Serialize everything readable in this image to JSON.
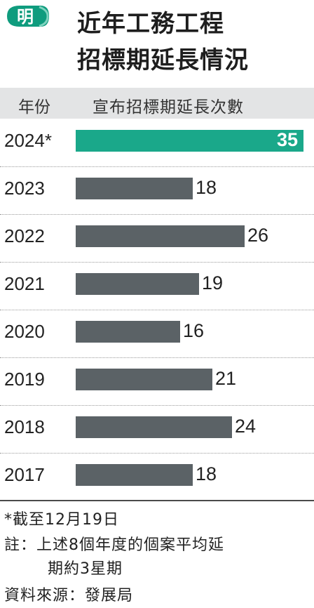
{
  "logo": {
    "text": "明",
    "bg_color": "#0f9c7e"
  },
  "title": {
    "line1": "近年工務工程",
    "line2": "招標期延長情況"
  },
  "columns": {
    "year": "年份",
    "count": "宣布招標期延長次數"
  },
  "colors": {
    "current_bar": "#1aa88a",
    "bar": "#5b6266",
    "header_bg": "#e3e4e5"
  },
  "chart_data": {
    "type": "bar",
    "orientation": "horizontal",
    "categories": [
      "2024*",
      "2023",
      "2022",
      "2021",
      "2020",
      "2019",
      "2018",
      "2017"
    ],
    "values": [
      35,
      18,
      26,
      19,
      16,
      21,
      24,
      18
    ],
    "value_labels": [
      "35",
      "18",
      "26",
      "19",
      "16",
      "21",
      "24",
      "18"
    ],
    "highlighted_index": 0,
    "xlim": [
      0,
      35
    ]
  },
  "footer": {
    "note1": "*截至12月19日",
    "note2": "註：上述8個年度的個案平均延",
    "note3": "期約3星期",
    "source": "資料來源：發展局"
  }
}
